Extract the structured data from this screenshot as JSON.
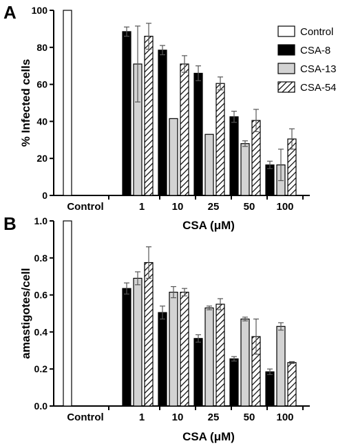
{
  "colors": {
    "Control": "#ffffff",
    "CSA-8": "#000000",
    "CSA-13": "#d3d3d3",
    "CSA-54": "hatched"
  },
  "legend": [
    "Control",
    "CSA-8",
    "CSA-13",
    "CSA-54"
  ],
  "chart_data": [
    {
      "type": "bar",
      "panel": "A",
      "title": "",
      "ylabel": "% Infected cells",
      "xlabel": "CSA (μM)",
      "categories": [
        "Control",
        "1",
        "10",
        "25",
        "50",
        "100"
      ],
      "ylim": [
        0,
        100
      ],
      "yticks": [
        "0",
        "20",
        "40",
        "60",
        "80",
        "100"
      ],
      "legend_position": "top-right",
      "series": [
        {
          "name": "Control",
          "values": [
            100,
            null,
            null,
            null,
            null,
            null
          ],
          "errors": [
            0,
            null,
            null,
            null,
            null,
            null
          ]
        },
        {
          "name": "CSA-8",
          "values": [
            null,
            88.5,
            78.5,
            66,
            42.5,
            16.5
          ],
          "errors": [
            null,
            2.5,
            2.5,
            4,
            3,
            2
          ]
        },
        {
          "name": "CSA-13",
          "values": [
            null,
            71,
            41.5,
            33,
            28,
            16.5
          ],
          "errors": [
            null,
            20.5,
            0,
            0,
            1.5,
            8.5
          ]
        },
        {
          "name": "CSA-54",
          "values": [
            null,
            86,
            71,
            60.5,
            40.5,
            30.5
          ],
          "errors": [
            null,
            7,
            4.5,
            3.5,
            6,
            5.5
          ]
        }
      ]
    },
    {
      "type": "bar",
      "panel": "B",
      "title": "",
      "ylabel": "amastigotes/cell",
      "xlabel": "CSA (μM)",
      "categories": [
        "Control",
        "1",
        "10",
        "25",
        "50",
        "100"
      ],
      "ylim": [
        0,
        1.0
      ],
      "yticks": [
        "0.0",
        "0.2",
        "0.4",
        "0.6",
        "0.8",
        "1.0"
      ],
      "series": [
        {
          "name": "Control",
          "values": [
            1.0,
            null,
            null,
            null,
            null,
            null
          ],
          "errors": [
            0,
            null,
            null,
            null,
            null,
            null
          ]
        },
        {
          "name": "CSA-8",
          "values": [
            null,
            0.635,
            0.505,
            0.365,
            0.255,
            0.185
          ],
          "errors": [
            null,
            0.03,
            0.035,
            0.02,
            0.012,
            0.015
          ]
        },
        {
          "name": "CSA-13",
          "values": [
            null,
            0.69,
            0.615,
            0.53,
            0.47,
            0.43
          ],
          "errors": [
            null,
            0.035,
            0.03,
            0.01,
            0.01,
            0.02
          ]
        },
        {
          "name": "CSA-54",
          "values": [
            null,
            0.775,
            0.615,
            0.55,
            0.375,
            0.235
          ],
          "errors": [
            null,
            0.085,
            0.02,
            0.03,
            0.095,
            0.005
          ]
        }
      ]
    }
  ]
}
